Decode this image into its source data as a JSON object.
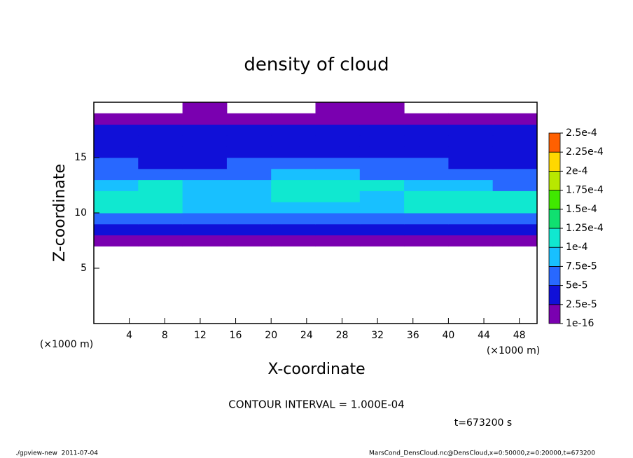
{
  "chart_data": {
    "type": "heatmap",
    "title": "density of cloud",
    "x_label": "X-coordinate",
    "y_label": "Z-coordinate",
    "x_unit": "(×1000 m)",
    "y_unit": "(×1000 m)",
    "xlim": [
      0,
      50
    ],
    "ylim": [
      0,
      20
    ],
    "xticks": [
      4,
      8,
      12,
      16,
      20,
      24,
      28,
      32,
      36,
      40,
      44,
      48
    ],
    "yticks": [
      5,
      10,
      15
    ],
    "xbins": [
      0,
      5,
      10,
      15,
      20,
      25,
      30,
      35,
      40,
      45,
      50
    ],
    "zbins": [
      7,
      8,
      9,
      10,
      11,
      12,
      13,
      14,
      15,
      16,
      17,
      18,
      19,
      20
    ],
    "values": [
      [
        1e-06,
        1e-06,
        1e-06,
        1e-06,
        1e-06,
        1e-06,
        1e-06,
        1e-06,
        1e-06,
        1e-06
      ],
      [
        3e-05,
        3e-05,
        3e-05,
        3e-05,
        3e-05,
        3e-05,
        3e-05,
        3e-05,
        3e-05,
        3e-05
      ],
      [
        6e-05,
        6e-05,
        5e-05,
        5e-05,
        6e-05,
        5e-05,
        5e-05,
        6e-05,
        6e-05,
        6e-05
      ],
      [
        0.000105,
        0.00011,
        8e-05,
        8e-05,
        8e-05,
        8e-05,
        9e-05,
        0.00011,
        0.00011,
        0.000105
      ],
      [
        0.00011,
        0.000115,
        9e-05,
        9e-05,
        0.000105,
        0.00011,
        8e-05,
        0.000115,
        0.000115,
        0.00011
      ],
      [
        8e-05,
        0.000105,
        8e-05,
        8e-05,
        0.000105,
        0.00011,
        0.000105,
        8e-05,
        9e-05,
        7e-05
      ],
      [
        6e-05,
        6e-05,
        6e-05,
        6e-05,
        8e-05,
        9e-05,
        7e-05,
        6e-05,
        5e-05,
        5e-05
      ],
      [
        5e-05,
        4e-05,
        4e-05,
        5e-05,
        6e-05,
        6e-05,
        5e-05,
        5e-05,
        4e-05,
        4e-05
      ],
      [
        4e-05,
        3.5e-05,
        3.5e-05,
        4e-05,
        4.5e-05,
        4.5e-05,
        4e-05,
        4e-05,
        3.5e-05,
        4e-05
      ],
      [
        3e-05,
        3e-05,
        3e-05,
        3e-05,
        3e-05,
        3e-05,
        3e-05,
        3e-05,
        3e-05,
        3e-05
      ],
      [
        2.6e-05,
        2.6e-05,
        2.6e-05,
        2.6e-05,
        2.6e-05,
        2.6e-05,
        2.6e-05,
        2.6e-05,
        2.6e-05,
        2.6e-05
      ],
      [
        5e-06,
        5e-06,
        5e-06,
        5e-06,
        5e-06,
        5e-06,
        5e-06,
        5e-06,
        5e-06,
        5e-06
      ],
      [
        null,
        null,
        5e-06,
        null,
        null,
        5e-06,
        5e-06,
        null,
        null,
        null
      ]
    ],
    "colorbar": {
      "levels": [
        1e-16,
        {
          "value": 2.5e-05,
          "label": "2.5e-5"
        },
        {
          "value": 5e-05,
          "label": "5e-5"
        },
        {
          "value": 7.5e-05,
          "label": "7.5e-5"
        },
        {
          "value": 0.0001,
          "label": "1e-4"
        },
        {
          "value": 0.000125,
          "label": "1.25e-4"
        },
        {
          "value": 0.00015,
          "label": "1.5e-4"
        },
        {
          "value": 0.000175,
          "label": "1.75e-4"
        },
        {
          "value": 0.0002,
          "label": "2e-4"
        },
        {
          "value": 0.000225,
          "label": "2.25e-4"
        },
        {
          "value": 0.00025,
          "label": "2.5e-4"
        }
      ],
      "colors": [
        "#7a00b0",
        "#1010d8",
        "#2868ff",
        "#18c0ff",
        "#10e8d0",
        "#10e070",
        "#40e800",
        "#b8e800",
        "#ffd800",
        "#ff6000"
      ]
    },
    "contour_note": "CONTOUR INTERVAL = 1.000E-04",
    "time_note": "t=673200 s",
    "footer_left": "./gpview-new  2011-07-04",
    "footer_right": "MarsCond_DensCloud.nc@DensCloud,x=0:50000,z=0:20000,t=673200"
  }
}
